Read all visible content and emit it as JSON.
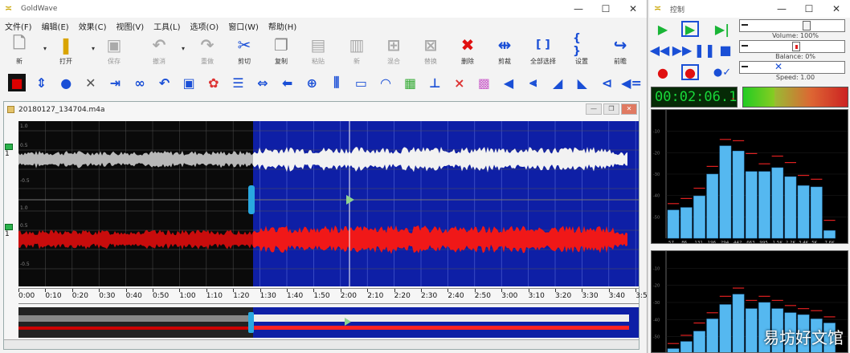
{
  "main_window": {
    "app_title": "GoldWave",
    "minimize": "—",
    "maximize": "☐",
    "close": "✕",
    "menus": [
      "文件(F)",
      "编辑(E)",
      "效果(C)",
      "视图(V)",
      "工具(L)",
      "选项(O)",
      "窗口(W)",
      "帮助(H)"
    ],
    "toolbar_buttons": [
      {
        "label": "新",
        "icon": "new-file-icon",
        "enabled": true
      },
      {
        "label": "打开",
        "icon": "open-folder-icon",
        "enabled": true
      },
      {
        "label": "保存",
        "icon": "save-icon",
        "enabled": false
      },
      {
        "label": "撤消",
        "icon": "undo-icon",
        "enabled": false
      },
      {
        "label": "重做",
        "icon": "redo-icon",
        "enabled": false
      },
      {
        "label": "剪切",
        "icon": "scissors-icon",
        "enabled": true
      },
      {
        "label": "复制",
        "icon": "copy-icon",
        "enabled": true
      },
      {
        "label": "粘贴",
        "icon": "paste-icon",
        "enabled": false
      },
      {
        "label": "新",
        "icon": "paste-new-icon",
        "enabled": false
      },
      {
        "label": "混合",
        "icon": "mix-icon",
        "enabled": false
      },
      {
        "label": "替换",
        "icon": "replace-icon",
        "enabled": false
      },
      {
        "label": "删除",
        "icon": "delete-icon",
        "enabled": true
      },
      {
        "label": "剪裁",
        "icon": "trim-icon",
        "enabled": true
      },
      {
        "label": "全部选择",
        "icon": "select-all-icon",
        "enabled": true
      },
      {
        "label": "设置",
        "icon": "set-selection-icon",
        "enabled": true
      },
      {
        "label": "前瞻",
        "icon": "preview-icon",
        "enabled": true
      }
    ],
    "document": {
      "filename": "20180127_134704.m4a",
      "time_ticks": [
        "0:00",
        "0:10",
        "0:20",
        "0:30",
        "0:40",
        "0:50",
        "1:00",
        "1:10",
        "1:20",
        "1:30",
        "1:40",
        "1:50",
        "2:00",
        "2:10",
        "2:20",
        "2:30",
        "2:40",
        "2:50",
        "3:00",
        "3:10",
        "3:20",
        "3:30",
        "3:40",
        "3:5"
      ]
    }
  },
  "control_window": {
    "title": "控制",
    "minimize": "—",
    "maximize": "☐",
    "close": "✕",
    "sliders": [
      {
        "label": "Volume: 100%",
        "level": 0.62
      },
      {
        "label": "Balance: 0%",
        "level": 0.5
      },
      {
        "label": "Speed: 1.00",
        "level": 0.3
      }
    ],
    "time_display": "00:02:06.1",
    "spectrum_top": {
      "bands": [
        "57",
        "86",
        "131",
        "196",
        "294",
        "442",
        "663",
        "995",
        "1.5K",
        "2.2K",
        "3.4K",
        "5K",
        "7.6K"
      ],
      "values": [
        22,
        24,
        33,
        50,
        72,
        68,
        52,
        52,
        55,
        48,
        41,
        40,
        6
      ],
      "peaks": [
        27,
        31,
        39,
        56,
        77,
        76,
        66,
        58,
        64,
        59,
        49,
        46,
        14
      ]
    },
    "spectrum_bottom": {
      "values": [
        5,
        12,
        22,
        34,
        48,
        58,
        44,
        50,
        44,
        40,
        38,
        34,
        30
      ],
      "peaks": [
        10,
        18,
        30,
        40,
        56,
        64,
        52,
        56,
        52,
        47,
        44,
        42,
        36
      ]
    }
  },
  "watermark": "易坊好文馆"
}
